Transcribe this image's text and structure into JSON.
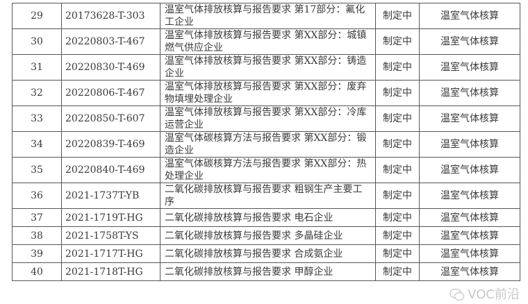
{
  "rows": [
    {
      "no": "29",
      "code": "20173628-T-303",
      "name": "温室气体排放核算与报告要求 第17部分：氟化工企业",
      "status": "制定中",
      "category": "温室气体核算"
    },
    {
      "no": "30",
      "code": "20220803-T-467",
      "name": "温室气体排放核算与报告要求 第XX部分：城镇燃气供应企业",
      "status": "制定中",
      "category": "温室气体核算"
    },
    {
      "no": "31",
      "code": "20220830-T-469",
      "name": "温室气体排放核算与报告要求 第XX部分：铸造企业",
      "status": "制定中",
      "category": "温室气体核算"
    },
    {
      "no": "32",
      "code": "20220806-T-467",
      "name": "温室气体排放核算与报告要求 第XX部分：废弃物填埋处理企业",
      "status": "制定中",
      "category": "温室气体核算"
    },
    {
      "no": "33",
      "code": "20220850-T-607",
      "name": "温室气体排放核算与报告要求 第XX部分：冷库运营企业",
      "status": "制定中",
      "category": "温室气体核算"
    },
    {
      "no": "34",
      "code": "20220839-T-469",
      "name": "温室气体碳核算方法与报告要求 第XX部分：锻造企业",
      "status": "制定中",
      "category": "温室气体核算"
    },
    {
      "no": "35",
      "code": "20220840-T-469",
      "name": "温室气体碳核算方法与报告要求 第XX部分：热处理企业",
      "status": "制定中",
      "category": "温室气体核算"
    },
    {
      "no": "36",
      "code": "2021-1737T-YB",
      "name": "二氧化碳排放核算与报告要求 粗钢生产主要工序",
      "status": "制定中",
      "category": "温室气体核算"
    },
    {
      "no": "37",
      "code": "2021-1719T-HG",
      "name": "二氧化碳排放核算与报告要求 电石企业",
      "status": "制定中",
      "category": "温室气体核算"
    },
    {
      "no": "38",
      "code": "2021-1758T-YS",
      "name": "二氧化碳排放核算与报告要求 多晶硅企业",
      "status": "制定中",
      "category": "温室气体核算"
    },
    {
      "no": "39",
      "code": "2021-1717T-HG",
      "name": "二氧化碳排放核算与报告要求 合成氨企业",
      "status": "制定中",
      "category": "温室气体核算"
    },
    {
      "no": "40",
      "code": "2021-1718T-HG",
      "name": "二氧化碳排放核算与报告要求 甲醇企业",
      "status": "制定中",
      "category": "温室气体核算"
    }
  ],
  "watermark": {
    "text": "VOC前沿",
    "icon": "wechat-icon"
  }
}
